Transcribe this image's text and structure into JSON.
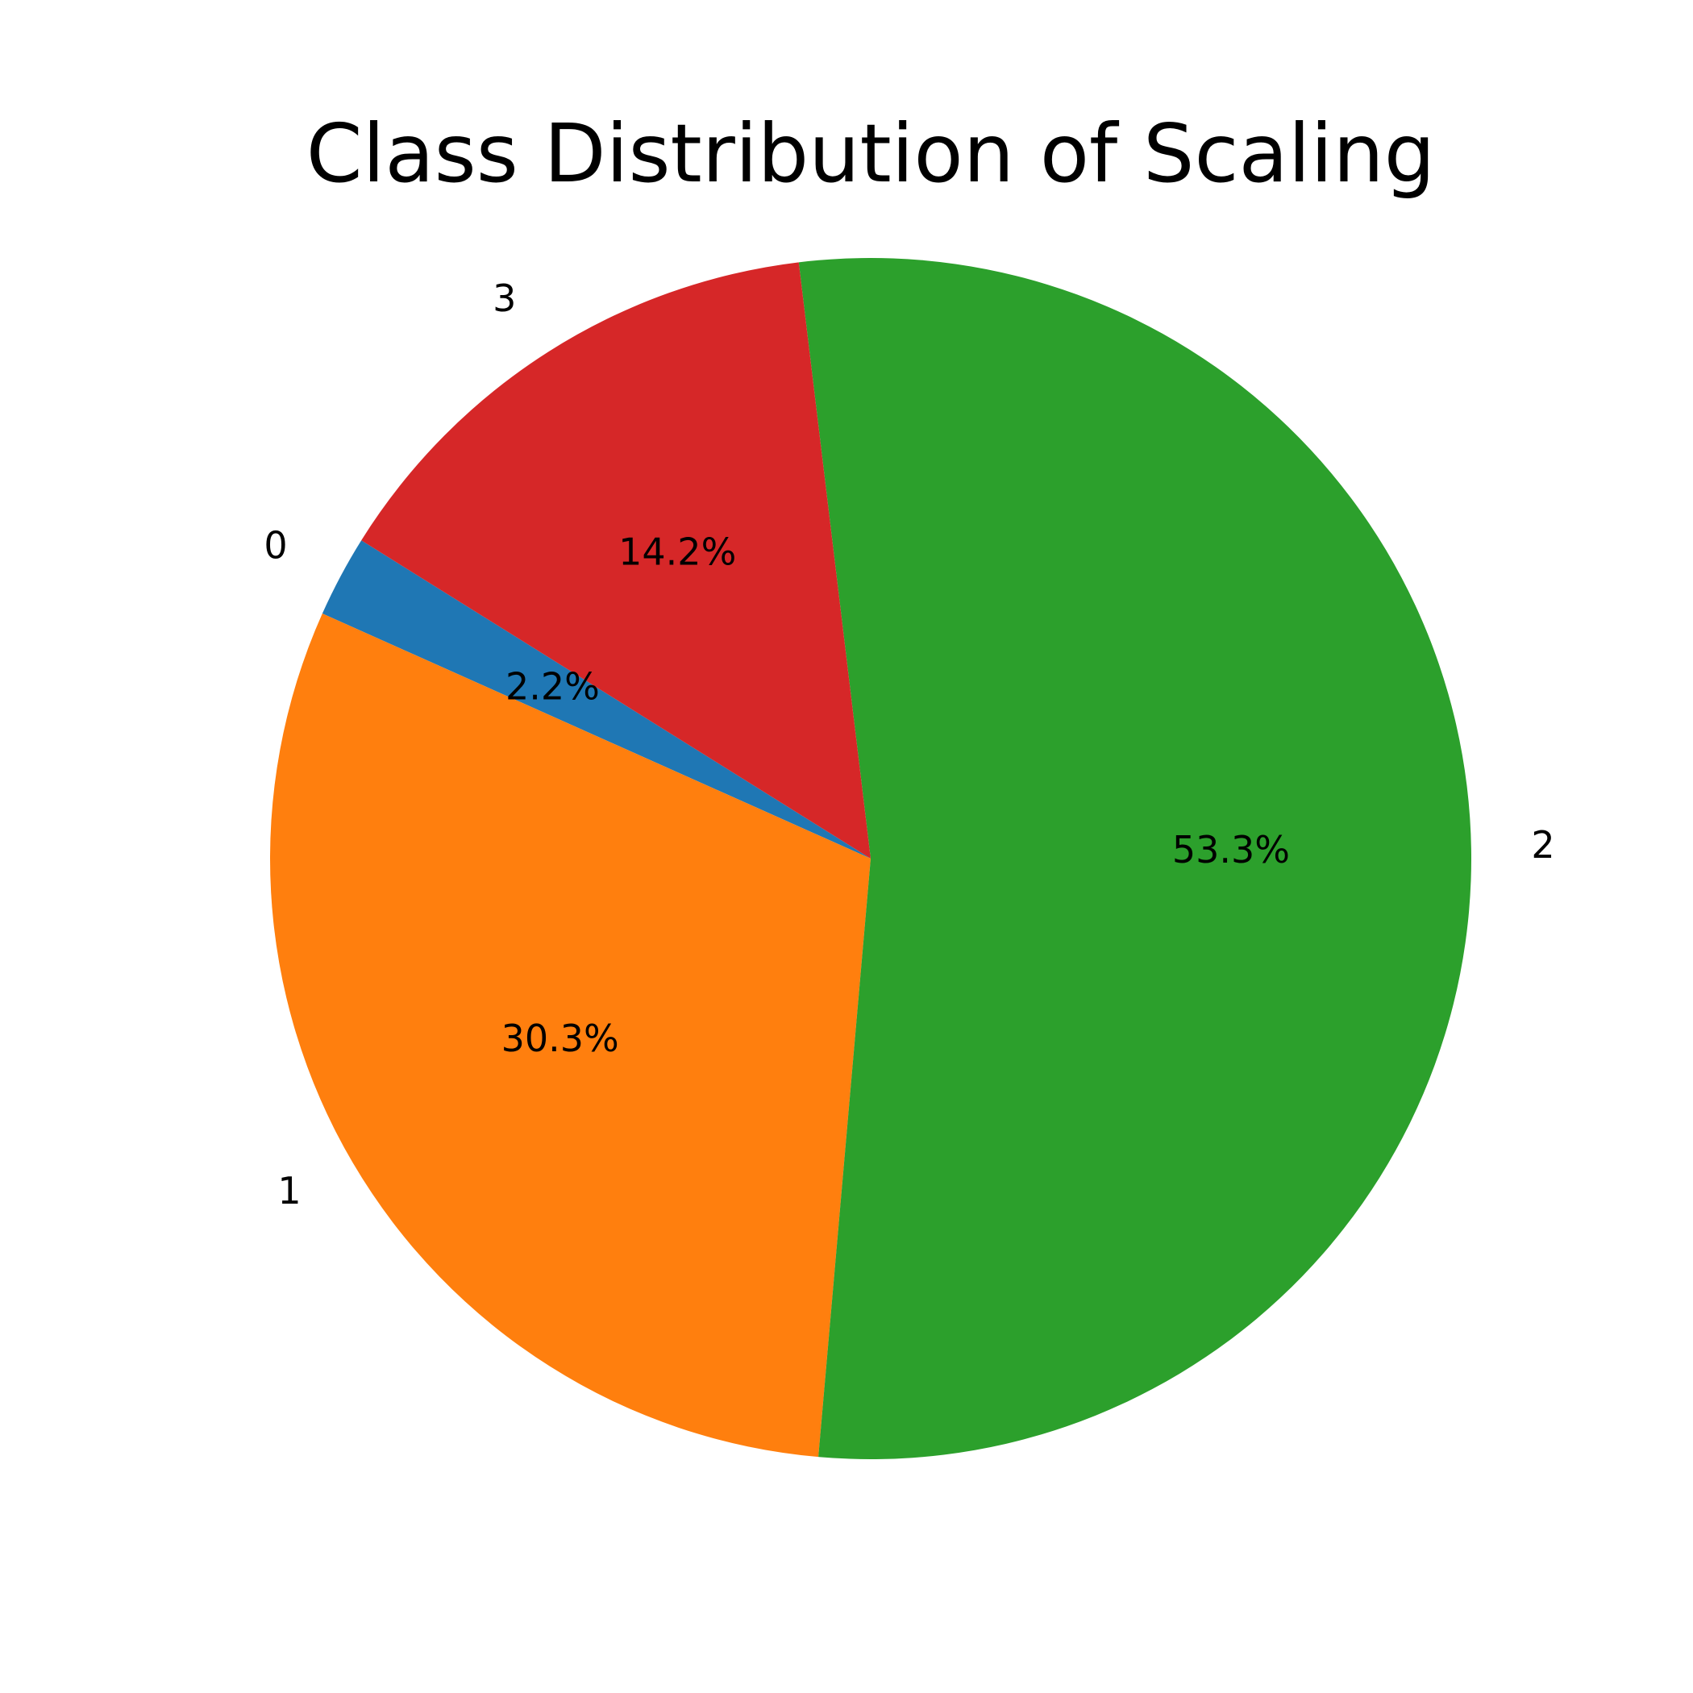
{
  "chart_data": {
    "type": "pie",
    "title": "Class Distribution of Scaling",
    "slices": [
      {
        "label": "0",
        "value": 2.2,
        "pct_label": "2.2%",
        "color": "#1f77b4"
      },
      {
        "label": "1",
        "value": 30.3,
        "pct_label": "30.3%",
        "color": "#ff7f0e"
      },
      {
        "label": "2",
        "value": 53.3,
        "pct_label": "53.3%",
        "color": "#2ca02c"
      },
      {
        "label": "3",
        "value": 14.2,
        "pct_label": "14.2%",
        "color": "#d62728"
      }
    ],
    "start_angle_deg": 148,
    "direction": "counterclockwise"
  }
}
